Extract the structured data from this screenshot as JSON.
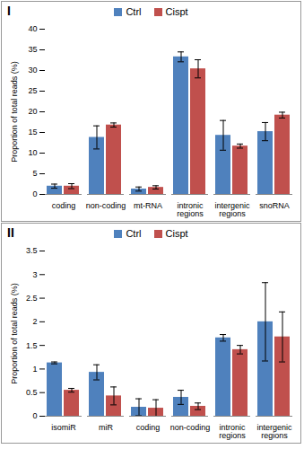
{
  "chart_data": [
    {
      "type": "bar",
      "title": "I",
      "y_label": "Proportion of total reads (%)",
      "categories": [
        "coding",
        "non-coding",
        "mt-RNA",
        "intronic regions",
        "intergenic regions",
        "snoRNA"
      ],
      "series": [
        {
          "name": "Ctrl",
          "color": "#4f81bd",
          "values": [
            2.0,
            13.8,
            1.3,
            33.3,
            14.3,
            15.2
          ],
          "errors": [
            0.5,
            2.8,
            0.5,
            1.2,
            3.6,
            2.2
          ]
        },
        {
          "name": "Cispt",
          "color": "#c0504d",
          "values": [
            2.0,
            16.8,
            1.7,
            30.4,
            11.7,
            19.2
          ],
          "errors": [
            0.6,
            0.5,
            0.4,
            2.2,
            0.5,
            0.7
          ]
        }
      ],
      "ylim": [
        0,
        40
      ],
      "yticks": [
        0,
        5,
        10,
        15,
        20,
        25,
        30,
        35,
        40
      ],
      "grid": false,
      "legend": "top"
    },
    {
      "type": "bar",
      "title": "II",
      "y_label": "Proportion of total reads (%)",
      "categories": [
        "isomiR",
        "miR",
        "coding",
        "non-coding",
        "intronic regions",
        "intergenic regions"
      ],
      "series": [
        {
          "name": "Ctrl",
          "color": "#4f81bd",
          "values": [
            1.13,
            0.93,
            0.19,
            0.4,
            1.66,
            2.0
          ],
          "errors": [
            0.02,
            0.16,
            0.18,
            0.15,
            0.07,
            0.83
          ]
        },
        {
          "name": "Cispt",
          "color": "#c0504d",
          "values": [
            0.55,
            0.43,
            0.17,
            0.21,
            1.41,
            1.68
          ],
          "errors": [
            0.04,
            0.19,
            0.18,
            0.07,
            0.09,
            0.53
          ]
        }
      ],
      "ylim": [
        0,
        3.5
      ],
      "yticks": [
        0,
        0.5,
        1,
        1.5,
        2,
        2.5,
        3,
        3.5
      ],
      "grid": false,
      "legend": "top"
    }
  ]
}
